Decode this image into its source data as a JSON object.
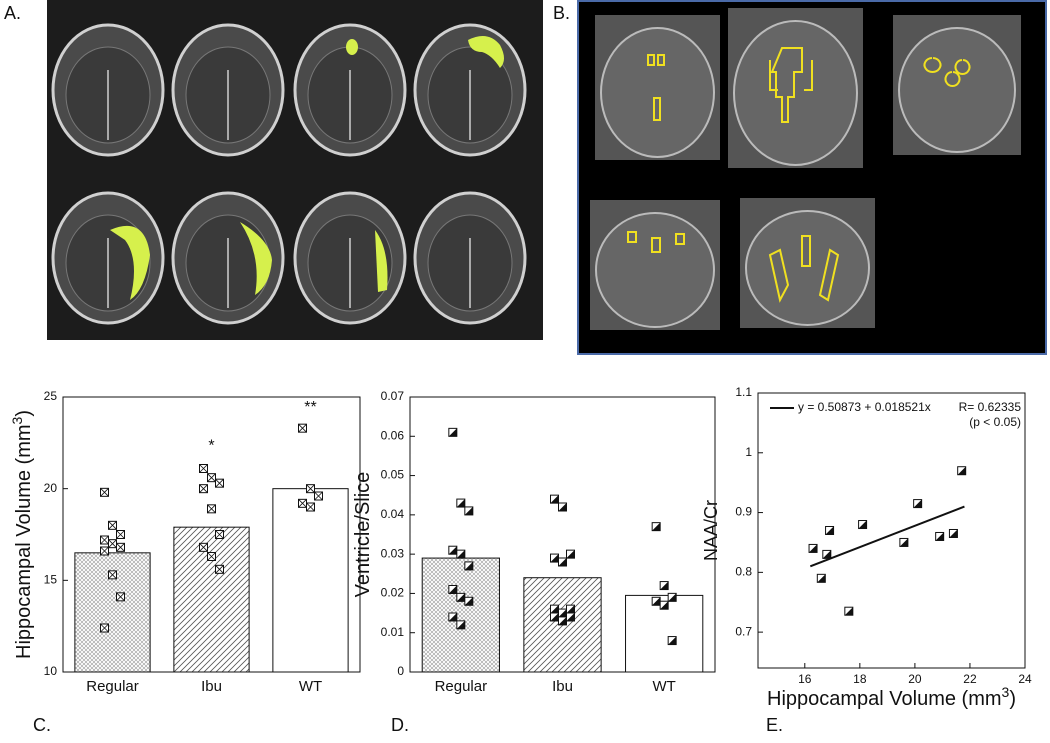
{
  "panel_labels": [
    "A.",
    "B.",
    "C.",
    "D.",
    "E."
  ],
  "chart_data": [
    {
      "type": "bar_scatter",
      "ylabel": "Hippocampal Volume (mm",
      "ylabel_sup": "3",
      "ylabel_end": ")",
      "categories": [
        "Regular",
        "Ibu",
        "WT"
      ],
      "values": [
        16.5,
        17.9,
        20.0
      ],
      "points": [
        [
          19.8,
          18.0,
          17.5,
          17.2,
          17.0,
          16.8,
          16.6,
          15.3,
          14.1,
          12.4
        ],
        [
          21.1,
          20.6,
          20.3,
          20.0,
          18.9,
          17.5,
          16.8,
          16.3,
          15.6
        ],
        [
          23.3,
          20.0,
          19.6,
          19.2,
          19.0
        ]
      ],
      "annotations": [
        {
          "text": "*",
          "category": "Ibu",
          "value": 22.3
        },
        {
          "text": "**",
          "category": "WT",
          "value": 24.4
        }
      ],
      "marker": "cross",
      "ylim": [
        10,
        25
      ],
      "yticks": [
        10,
        15,
        20,
        25
      ]
    },
    {
      "type": "bar_scatter",
      "ylabel": "Ventricle/Slice",
      "categories": [
        "Regular",
        "Ibu",
        "WT"
      ],
      "values": [
        0.029,
        0.024,
        0.0195
      ],
      "points": [
        [
          0.061,
          0.043,
          0.041,
          0.031,
          0.03,
          0.027,
          0.021,
          0.019,
          0.018,
          0.014,
          0.012
        ],
        [
          0.044,
          0.042,
          0.03,
          0.029,
          0.028,
          0.016,
          0.016,
          0.015,
          0.014,
          0.014,
          0.013
        ],
        [
          0.037,
          0.022,
          0.019,
          0.018,
          0.017,
          0.008
        ]
      ],
      "marker": "half",
      "ylim": [
        0,
        0.07
      ],
      "yticks": [
        0,
        0.01,
        0.02,
        0.03,
        0.04,
        0.05,
        0.06,
        0.07
      ]
    },
    {
      "type": "scatter",
      "ylabel": "NAA/Cr",
      "xlabel": "Hippocampal Volume (mm",
      "xlabel_sup": "3",
      "xlabel_end": ")",
      "x": [
        16.3,
        16.6,
        16.8,
        16.9,
        17.6,
        18.1,
        19.6,
        20.1,
        20.9,
        21.4,
        21.7
      ],
      "values": [
        0.84,
        0.79,
        0.83,
        0.87,
        0.735,
        0.88,
        0.85,
        0.915,
        0.86,
        0.865,
        0.97
      ],
      "fit_line": {
        "x": [
          16.2,
          21.8
        ],
        "values": [
          0.81,
          0.91
        ]
      },
      "legend": [
        "y = 0.50873 + 0.018521x",
        "R= 0.62335",
        "(p < 0.05)"
      ],
      "marker": "half",
      "xlim": [
        14.3,
        24
      ],
      "xticks": [
        16,
        18,
        20,
        22,
        24
      ],
      "ylim": [
        0.64,
        1.1
      ],
      "yticks": [
        0.7,
        0.8,
        0.9,
        1,
        1.1
      ]
    }
  ]
}
